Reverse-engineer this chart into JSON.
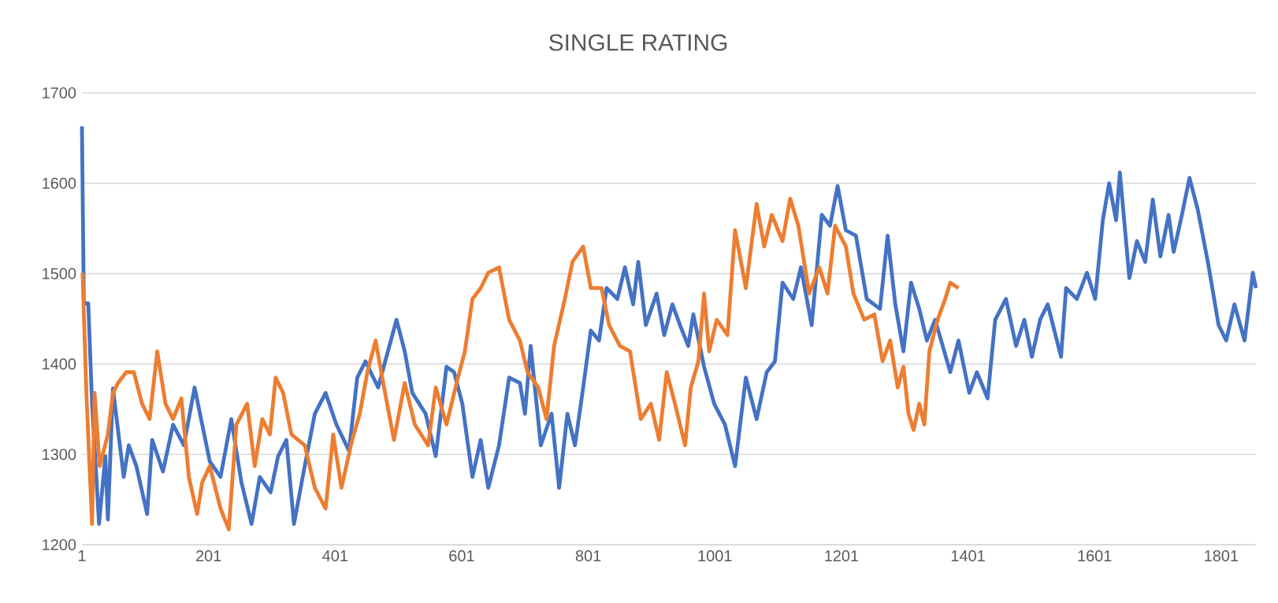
{
  "chart_data": {
    "type": "line",
    "title": "SINGLE RATING",
    "xlim": [
      1,
      1856
    ],
    "xticks": [
      1,
      201,
      401,
      601,
      801,
      1001,
      1201,
      1401,
      1601,
      1801
    ],
    "ylim": [
      1200,
      1700
    ],
    "yticks": [
      1200,
      1300,
      1400,
      1500,
      1600,
      1700
    ],
    "grid": "y",
    "legend": false,
    "marker": "none",
    "line_style": "solid",
    "series": [
      {
        "color": "#4472c4",
        "x": [
          1,
          4,
          11,
          17,
          28,
          38,
          42,
          50,
          67,
          75,
          87,
          104,
          112,
          129,
          145,
          162,
          179,
          191,
          203,
          220,
          237,
          253,
          269,
          282,
          299,
          311,
          324,
          336,
          353,
          369,
          386,
          403,
          423,
          436,
          449,
          469,
          498,
          511,
          523,
          544,
          560,
          577,
          589,
          602,
          618,
          631,
          643,
          660,
          676,
          693,
          701,
          710,
          726,
          743,
          755,
          768,
          780,
          793,
          805,
          818,
          830,
          847,
          859,
          872,
          880,
          892,
          909,
          921,
          934,
          946,
          959,
          967,
          984,
          1000,
          1017,
          1033,
          1050,
          1067,
          1083,
          1096,
          1108,
          1125,
          1137,
          1154,
          1170,
          1183,
          1195,
          1208,
          1224,
          1241,
          1262,
          1274,
          1286,
          1299,
          1311,
          1324,
          1336,
          1349,
          1361,
          1373,
          1386,
          1403,
          1415,
          1432,
          1444,
          1461,
          1477,
          1490,
          1502,
          1515,
          1527,
          1548,
          1556,
          1573,
          1589,
          1602,
          1614,
          1624,
          1635,
          1641,
          1656,
          1668,
          1681,
          1693,
          1705,
          1718,
          1726,
          1739,
          1751,
          1764,
          1780,
          1797,
          1809,
          1822,
          1838,
          1851,
          1856
        ],
        "values": [
          1663,
          1467,
          1467,
          1356,
          1223,
          1298,
          1228,
          1373,
          1275,
          1310,
          1287,
          1234,
          1316,
          1281,
          1333,
          1310,
          1374,
          1333,
          1292,
          1275,
          1339,
          1269,
          1223,
          1275,
          1258,
          1298,
          1316,
          1223,
          1287,
          1345,
          1368,
          1333,
          1304,
          1385,
          1403,
          1374,
          1449,
          1414,
          1368,
          1345,
          1298,
          1397,
          1391,
          1356,
          1275,
          1316,
          1263,
          1310,
          1385,
          1379,
          1345,
          1420,
          1310,
          1345,
          1263,
          1345,
          1310,
          1374,
          1437,
          1426,
          1484,
          1472,
          1507,
          1466,
          1513,
          1443,
          1478,
          1432,
          1466,
          1443,
          1420,
          1455,
          1397,
          1356,
          1333,
          1287,
          1385,
          1339,
          1391,
          1403,
          1490,
          1472,
          1507,
          1443,
          1565,
          1553,
          1597,
          1548,
          1542,
          1472,
          1461,
          1542,
          1467,
          1414,
          1490,
          1461,
          1426,
          1449,
          1420,
          1391,
          1426,
          1368,
          1391,
          1362,
          1449,
          1472,
          1420,
          1449,
          1408,
          1449,
          1466,
          1408,
          1484,
          1472,
          1501,
          1472,
          1559,
          1600,
          1559,
          1612,
          1495,
          1536,
          1513,
          1582,
          1519,
          1565,
          1524,
          1565,
          1606,
          1571,
          1513,
          1443,
          1426,
          1466,
          1426,
          1501,
          1484
        ]
      },
      {
        "color": "#ed7d31",
        "x": [
          2,
          8,
          17,
          21,
          29,
          42,
          50,
          58,
          71,
          83,
          96,
          108,
          120,
          133,
          145,
          158,
          170,
          183,
          191,
          203,
          220,
          233,
          245,
          262,
          274,
          286,
          298,
          307,
          319,
          332,
          353,
          369,
          386,
          398,
          411,
          428,
          440,
          452,
          465,
          477,
          494,
          511,
          527,
          548,
          560,
          577,
          593,
          606,
          618,
          631,
          643,
          660,
          676,
          693,
          705,
          722,
          735,
          747,
          764,
          776,
          793,
          805,
          822,
          834,
          851,
          867,
          884,
          900,
          913,
          925,
          938,
          954,
          963,
          975,
          984,
          992,
          1004,
          1021,
          1033,
          1050,
          1067,
          1079,
          1091,
          1108,
          1120,
          1133,
          1150,
          1166,
          1179,
          1191,
          1208,
          1220,
          1237,
          1253,
          1266,
          1278,
          1290,
          1299,
          1307,
          1315,
          1324,
          1332,
          1340,
          1353,
          1365,
          1373,
          1386
        ],
        "values": [
          1501,
          1368,
          1223,
          1368,
          1287,
          1322,
          1368,
          1379,
          1391,
          1391,
          1356,
          1339,
          1414,
          1356,
          1339,
          1362,
          1275,
          1234,
          1269,
          1287,
          1240,
          1217,
          1333,
          1356,
          1287,
          1339,
          1322,
          1385,
          1368,
          1322,
          1310,
          1263,
          1240,
          1322,
          1263,
          1316,
          1345,
          1391,
          1426,
          1379,
          1316,
          1379,
          1333,
          1310,
          1374,
          1333,
          1379,
          1414,
          1472,
          1484,
          1501,
          1507,
          1449,
          1426,
          1391,
          1374,
          1339,
          1420,
          1472,
          1513,
          1530,
          1484,
          1484,
          1443,
          1420,
          1414,
          1339,
          1356,
          1316,
          1391,
          1356,
          1310,
          1374,
          1403,
          1478,
          1414,
          1449,
          1432,
          1548,
          1484,
          1577,
          1530,
          1565,
          1536,
          1583,
          1553,
          1478,
          1507,
          1478,
          1553,
          1530,
          1478,
          1449,
          1455,
          1403,
          1426,
          1374,
          1397,
          1345,
          1327,
          1356,
          1333,
          1414,
          1449,
          1472,
          1490,
          1484
        ]
      }
    ]
  }
}
